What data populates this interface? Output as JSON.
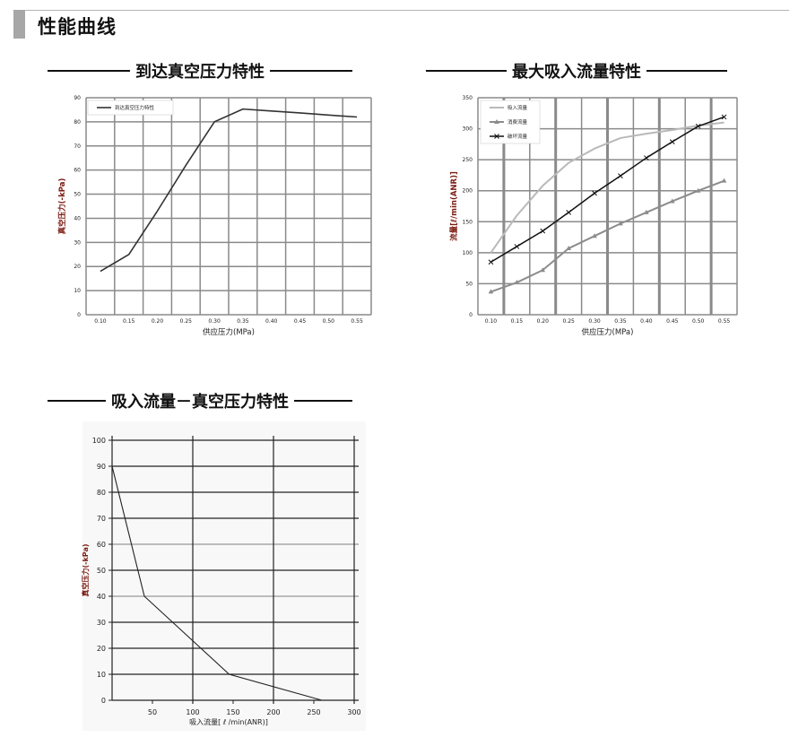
{
  "header": {
    "title": "性能曲线"
  },
  "sections": [
    {
      "title": "到达真空压力特性"
    },
    {
      "title": "最大吸入流量特性"
    },
    {
      "title": "吸入流量－真空压力特性"
    }
  ],
  "colors": {
    "grid": "#8a8a8a",
    "line_dark": "#333333",
    "series_light": "#b9b9b9",
    "series_mid": "#8c8c8c",
    "series_black": "#111111",
    "y_label": "#7a1a10",
    "chart3_bg": "#f8f8f8"
  },
  "chart_data": [
    {
      "type": "line",
      "title": "",
      "xlabel": "供应压力(MPa)",
      "ylabel": "真空压力(-kPa)",
      "categories": [
        "0.10",
        "0.15",
        "0.20",
        "0.25",
        "0.30",
        "0.35",
        "0.40",
        "0.45",
        "0.50",
        "0.55"
      ],
      "ylim": [
        0,
        90
      ],
      "yticks": [
        "0",
        "10",
        "20",
        "30",
        "40",
        "50",
        "60",
        "70",
        "80",
        "90"
      ],
      "grid": true,
      "legend": "top-left",
      "series": [
        {
          "name": "到达真空压力特性",
          "values": [
            18,
            25,
            43,
            62,
            80,
            85.3,
            84.5,
            83.7,
            82.8,
            82
          ]
        }
      ]
    },
    {
      "type": "line",
      "title": "",
      "xlabel": "供应压力(MPa)",
      "ylabel": "流量[ℓ/min(ANR)]",
      "categories": [
        "0.10",
        "0.15",
        "0.20",
        "0.25",
        "0.30",
        "0.35",
        "0.40",
        "0.45",
        "0.50",
        "0.55"
      ],
      "ylim": [
        0,
        350
      ],
      "yticks": [
        "0",
        "50",
        "100",
        "150",
        "200",
        "250",
        "300",
        "350"
      ],
      "grid": true,
      "legend": "top-left",
      "series": [
        {
          "name": "吸入流量",
          "marker": "none",
          "values": [
            100,
            160,
            208,
            245,
            268,
            285,
            292,
            298,
            305,
            310
          ]
        },
        {
          "name": "消费流量",
          "marker": "triangle",
          "values": [
            37,
            52,
            72,
            107,
            127,
            147,
            165,
            183,
            200,
            216
          ]
        },
        {
          "name": "破坏流量",
          "marker": "x",
          "values": [
            85,
            110,
            135,
            165,
            196,
            224,
            253,
            279,
            304,
            319
          ]
        }
      ]
    },
    {
      "type": "line",
      "title": "",
      "xlabel": "吸入流量[ ℓ /min(ANR)]",
      "ylabel": "真空压力(-kPa)",
      "xlim": [
        0,
        300
      ],
      "ylim": [
        0,
        100
      ],
      "xticks": [
        "50",
        "100",
        "150",
        "200",
        "250",
        "300"
      ],
      "yticks": [
        "0",
        "10",
        "20",
        "30",
        "40",
        "50",
        "60",
        "70",
        "80",
        "90",
        "100"
      ],
      "grid": true,
      "series": [
        {
          "x": [
            0,
            40,
            145,
            260
          ],
          "y": [
            90,
            40,
            10,
            0
          ]
        }
      ]
    }
  ]
}
